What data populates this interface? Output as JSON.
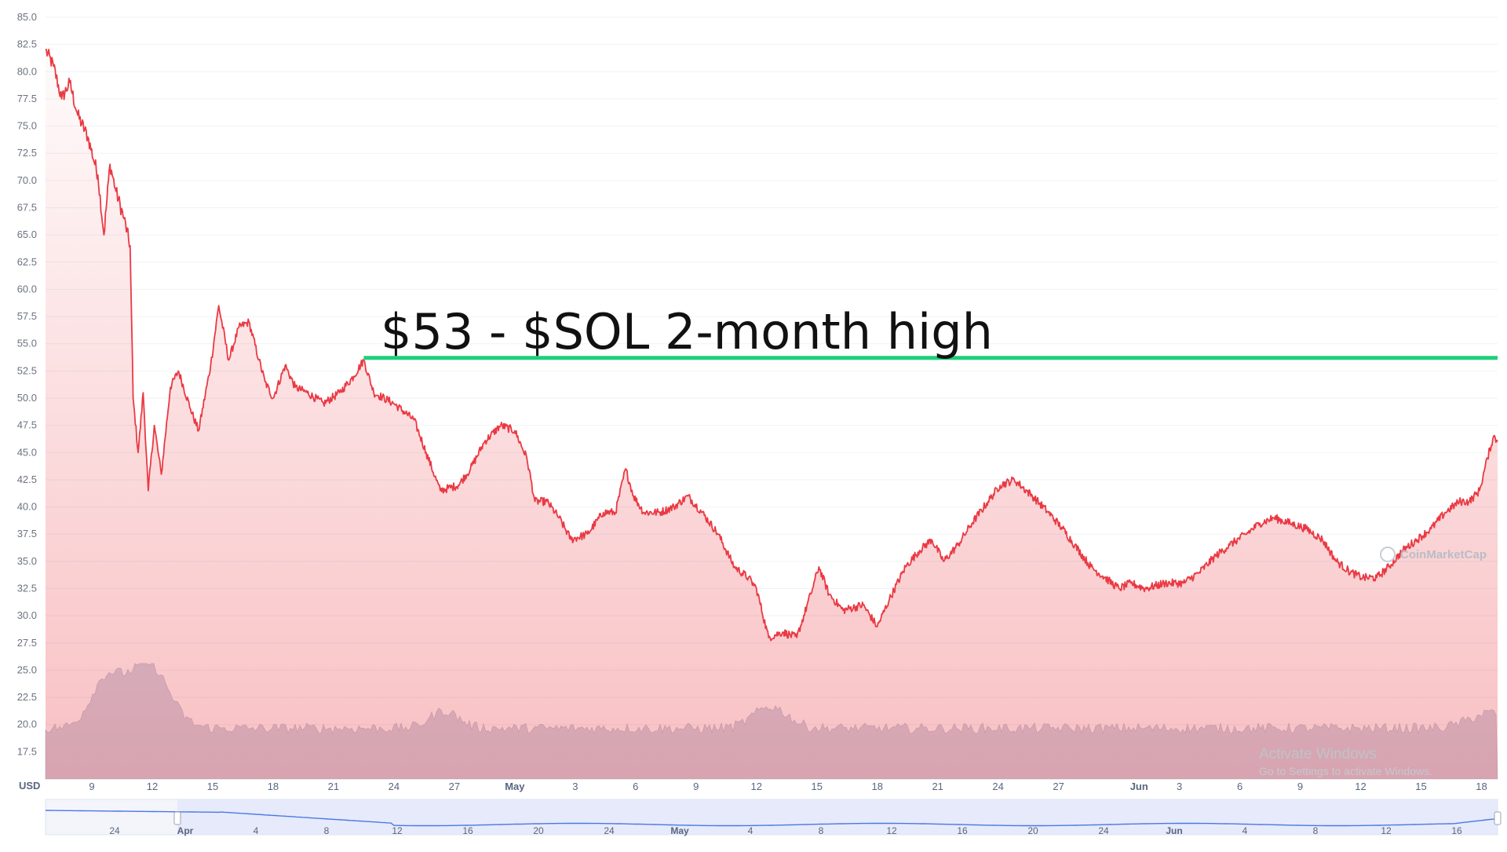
{
  "chart_data": {
    "type": "line",
    "currency_label": "USD",
    "y_axis": {
      "min": 15,
      "max": 85,
      "ticks": [
        "17.5",
        "20.0",
        "22.5",
        "25.0",
        "27.5",
        "30.0",
        "32.5",
        "35.0",
        "37.5",
        "40.0",
        "42.5",
        "45.0",
        "47.5",
        "50.0",
        "52.5",
        "55.0",
        "57.5",
        "60.0",
        "62.5",
        "65.0",
        "67.5",
        "70.0",
        "72.5",
        "75.0",
        "77.5",
        "80.0",
        "82.5",
        "85.0"
      ]
    },
    "x_axis": {
      "ticks": [
        {
          "label": "9",
          "day": 9
        },
        {
          "label": "12",
          "day": 12
        },
        {
          "label": "15",
          "day": 15
        },
        {
          "label": "18",
          "day": 18
        },
        {
          "label": "21",
          "day": 21
        },
        {
          "label": "24",
          "day": 24
        },
        {
          "label": "27",
          "day": 27
        },
        {
          "label": "May",
          "day": 30,
          "major": true
        },
        {
          "label": "3",
          "day": 33
        },
        {
          "label": "6",
          "day": 36
        },
        {
          "label": "9",
          "day": 39
        },
        {
          "label": "12",
          "day": 42
        },
        {
          "label": "15",
          "day": 45
        },
        {
          "label": "18",
          "day": 48
        },
        {
          "label": "21",
          "day": 51
        },
        {
          "label": "24",
          "day": 54
        },
        {
          "label": "27",
          "day": 57
        },
        {
          "label": "Jun",
          "day": 61,
          "major": true
        },
        {
          "label": "3",
          "day": 63
        },
        {
          "label": "6",
          "day": 66
        },
        {
          "label": "9",
          "day": 69
        },
        {
          "label": "12",
          "day": 72
        },
        {
          "label": "15",
          "day": 75
        },
        {
          "label": "18",
          "day": 78
        }
      ]
    },
    "series": [
      {
        "color": "#ea3943",
        "points": [
          [
            6.7,
            82.0
          ],
          [
            7.1,
            80.5
          ],
          [
            7.5,
            77.5
          ],
          [
            7.9,
            79.0
          ],
          [
            8.3,
            76.0
          ],
          [
            8.8,
            74.0
          ],
          [
            9.3,
            70.5
          ],
          [
            9.6,
            65.0
          ],
          [
            9.9,
            71.5
          ],
          [
            10.2,
            69.0
          ],
          [
            10.6,
            66.5
          ],
          [
            10.9,
            64.0
          ],
          [
            11.05,
            50.0
          ],
          [
            11.3,
            45.0
          ],
          [
            11.55,
            50.5
          ],
          [
            11.8,
            41.5
          ],
          [
            12.1,
            47.5
          ],
          [
            12.45,
            43.0
          ],
          [
            12.9,
            51.0
          ],
          [
            13.3,
            52.5
          ],
          [
            13.9,
            49.0
          ],
          [
            14.3,
            47.0
          ],
          [
            14.9,
            53.0
          ],
          [
            15.3,
            58.5
          ],
          [
            15.8,
            53.5
          ],
          [
            16.3,
            56.5
          ],
          [
            16.8,
            57.0
          ],
          [
            17.3,
            53.5
          ],
          [
            17.6,
            51.5
          ],
          [
            18.0,
            50.0
          ],
          [
            18.6,
            53.0
          ],
          [
            19.1,
            51.0
          ],
          [
            19.7,
            50.5
          ],
          [
            20.5,
            49.5
          ],
          [
            21.3,
            50.5
          ],
          [
            22.0,
            52.0
          ],
          [
            22.5,
            53.5
          ],
          [
            23.0,
            50.5
          ],
          [
            24.0,
            49.5
          ],
          [
            25.0,
            48.0
          ],
          [
            25.6,
            45.0
          ],
          [
            26.3,
            41.5
          ],
          [
            27.2,
            42.0
          ],
          [
            27.8,
            43.5
          ],
          [
            28.5,
            46.0
          ],
          [
            29.3,
            47.5
          ],
          [
            30.0,
            47.0
          ],
          [
            30.6,
            44.5
          ],
          [
            31.0,
            40.5
          ],
          [
            31.6,
            40.5
          ],
          [
            32.2,
            39.0
          ],
          [
            32.8,
            37.0
          ],
          [
            33.6,
            37.5
          ],
          [
            34.4,
            39.5
          ],
          [
            35.0,
            39.5
          ],
          [
            35.5,
            43.5
          ],
          [
            35.9,
            41.0
          ],
          [
            36.4,
            39.5
          ],
          [
            37.2,
            39.5
          ],
          [
            37.9,
            40.0
          ],
          [
            38.6,
            41.0
          ],
          [
            39.3,
            39.5
          ],
          [
            40.1,
            37.5
          ],
          [
            40.9,
            34.5
          ],
          [
            41.6,
            33.5
          ],
          [
            42.0,
            32.5
          ],
          [
            42.6,
            28.0
          ],
          [
            43.3,
            28.5
          ],
          [
            44.0,
            28.0
          ],
          [
            44.7,
            32.0
          ],
          [
            45.1,
            34.5
          ],
          [
            45.6,
            32.0
          ],
          [
            46.3,
            30.5
          ],
          [
            47.3,
            31.0
          ],
          [
            48.0,
            29.0
          ],
          [
            48.6,
            31.5
          ],
          [
            49.4,
            34.5
          ],
          [
            50.1,
            36.0
          ],
          [
            50.7,
            37.0
          ],
          [
            51.3,
            35.0
          ],
          [
            52.0,
            36.5
          ],
          [
            52.7,
            38.5
          ],
          [
            53.5,
            40.5
          ],
          [
            54.1,
            42.0
          ],
          [
            54.8,
            42.5
          ],
          [
            55.7,
            41.0
          ],
          [
            56.5,
            39.5
          ],
          [
            57.2,
            38.0
          ],
          [
            57.8,
            36.5
          ],
          [
            58.6,
            34.5
          ],
          [
            59.3,
            33.5
          ],
          [
            60.0,
            32.5
          ],
          [
            60.6,
            33.0
          ],
          [
            61.3,
            32.5
          ],
          [
            62.3,
            33.0
          ],
          [
            63.2,
            33.0
          ],
          [
            64.0,
            34.0
          ],
          [
            64.8,
            35.5
          ],
          [
            65.5,
            36.5
          ],
          [
            66.3,
            37.5
          ],
          [
            67.0,
            38.5
          ],
          [
            67.7,
            39.0
          ],
          [
            68.5,
            38.5
          ],
          [
            69.3,
            38.0
          ],
          [
            70.1,
            37.0
          ],
          [
            70.8,
            35.0
          ],
          [
            71.5,
            34.0
          ],
          [
            72.1,
            33.5
          ],
          [
            72.8,
            33.5
          ],
          [
            73.4,
            34.5
          ],
          [
            74.1,
            36.0
          ],
          [
            74.8,
            37.0
          ],
          [
            75.5,
            38.0
          ],
          [
            76.2,
            39.5
          ],
          [
            76.9,
            40.5
          ],
          [
            77.4,
            40.5
          ],
          [
            77.9,
            41.5
          ],
          [
            78.3,
            44.5
          ],
          [
            78.6,
            46.5
          ],
          [
            78.8,
            46.0
          ]
        ]
      }
    ],
    "annotations": [
      {
        "type": "hline",
        "y": 53.7,
        "x_start": 22.5,
        "color": "#1fd07a",
        "text": "$53 - $SOL 2-month high"
      }
    ],
    "volume_bars": "relative trading volume shown as grey area below price",
    "navigator": {
      "ticks": [
        {
          "label": "24"
        },
        {
          "label": "Apr",
          "major": true
        },
        {
          "label": "4"
        },
        {
          "label": "8"
        },
        {
          "label": "12"
        },
        {
          "label": "16"
        },
        {
          "label": "20"
        },
        {
          "label": "24"
        },
        {
          "label": "May",
          "major": true
        },
        {
          "label": "4"
        },
        {
          "label": "8"
        },
        {
          "label": "12"
        },
        {
          "label": "16"
        },
        {
          "label": "20"
        },
        {
          "label": "24"
        },
        {
          "label": "Jun",
          "major": true
        },
        {
          "label": "4"
        },
        {
          "label": "8"
        },
        {
          "label": "12"
        },
        {
          "label": "16"
        }
      ]
    },
    "grid": true,
    "watermark": "CoinMarketCap"
  },
  "overlay": {
    "windows_line1": "Activate Windows",
    "windows_line2": "Go to Settings to activate Windows."
  }
}
